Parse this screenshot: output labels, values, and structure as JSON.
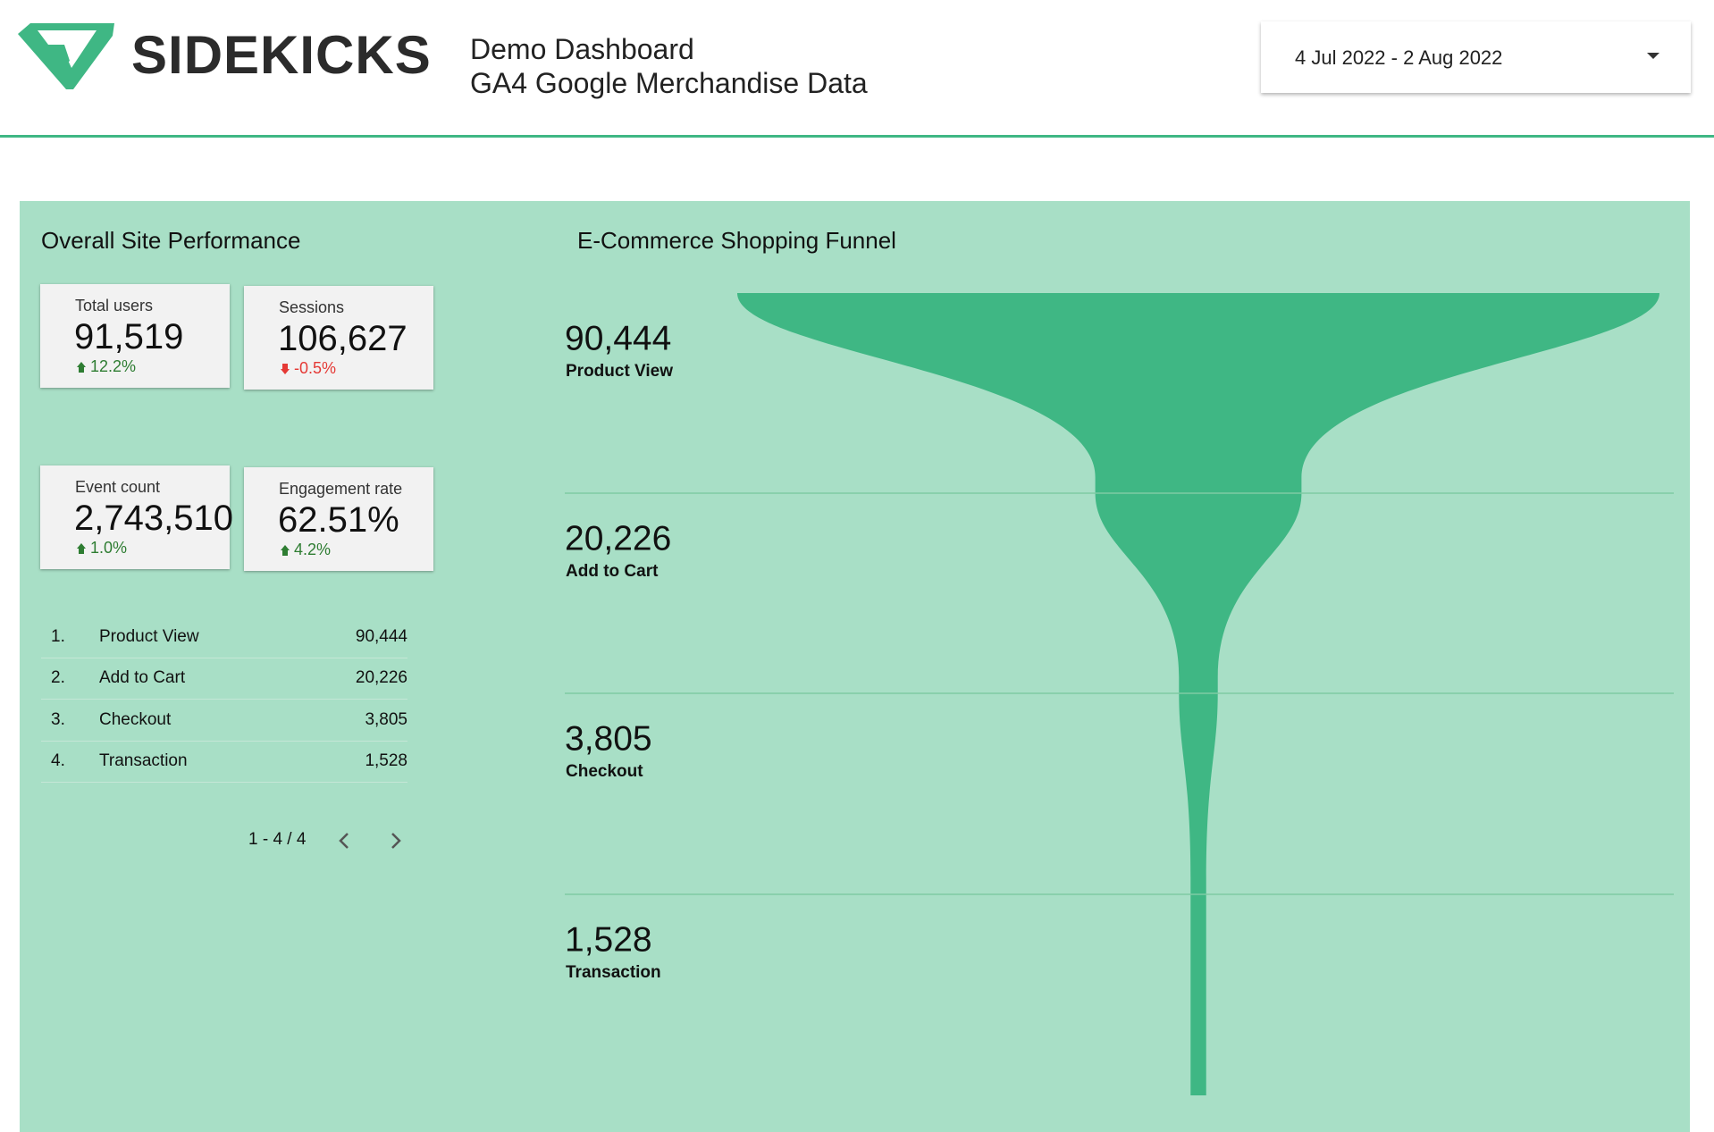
{
  "header": {
    "brand": "SIDEKICKS",
    "title": "Demo Dashboard",
    "subtitle": "GA4 Google Merchandise Data",
    "date_range": "4 Jul 2022 - 2 Aug 2022"
  },
  "overview": {
    "title": "Overall Site Performance",
    "scorecards": [
      {
        "label": "Total users",
        "value": "91,519",
        "change": "12.2%"
      },
      {
        "label": "Sessions",
        "value": "106,627",
        "change": "-0.5%"
      },
      {
        "label": "Event count",
        "value": "2,743,510",
        "change": "1.0%"
      },
      {
        "label": "Engagement rate",
        "value": "62.51%",
        "change": "4.2%"
      }
    ],
    "table": {
      "rows": [
        [
          "1.",
          "Product View",
          "90,444"
        ],
        [
          "2.",
          "Add to Cart",
          "20,226"
        ],
        [
          "3.",
          "Checkout",
          "3,805"
        ],
        [
          "4.",
          "Transaction",
          "1,528"
        ]
      ],
      "pagination": "1 - 4 / 4"
    }
  },
  "chart_data": {
    "type": "funnel",
    "title": "E-Commerce Shopping Funnel",
    "categories": [
      "Product View",
      "Add to Cart",
      "Checkout",
      "Transaction"
    ],
    "values": [
      90444,
      20226,
      3805,
      1528
    ],
    "value_labels": [
      "90,444",
      "20,226",
      "3,805",
      "1,528"
    ],
    "color": "#3fb784"
  }
}
